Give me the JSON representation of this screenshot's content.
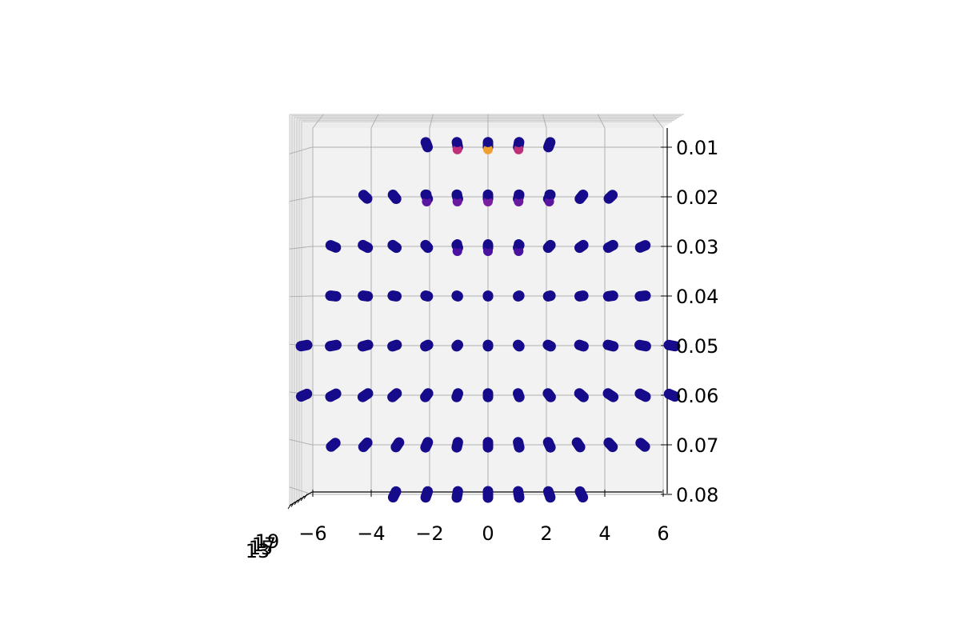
{
  "chart_data": {
    "type": "scatter",
    "projection": "3d",
    "view": "looking down the z axis",
    "title": "",
    "xlabel": "",
    "ylabel": "",
    "zlabel": "",
    "xlim": [
      -6.3,
      6.3
    ],
    "ylim": [
      0.0065,
      0.081
    ],
    "zlim": [
      11,
      19
    ],
    "y_inverted": true,
    "grid": true,
    "pane_color": "#f2f2f2",
    "colormap": "plasma",
    "xticks": [
      -6,
      -4,
      -2,
      0,
      2,
      4,
      6
    ],
    "xtick_labels": [
      "−6",
      "−4",
      "−2",
      "0",
      "2",
      "4",
      "6"
    ],
    "yticks": [
      0.01,
      0.02,
      0.03,
      0.04,
      0.05,
      0.06,
      0.07,
      0.08
    ],
    "ytick_labels": [
      "0.01",
      "0.02",
      "0.03",
      "0.04",
      "0.05",
      "0.06",
      "0.07",
      "0.08"
    ],
    "ztick_labels": [
      "13",
      "15",
      "17",
      "19"
    ],
    "grid_rows": [
      {
        "y": 0.08,
        "x": [
          -3.2,
          -2.1,
          -1.05,
          0,
          1.05,
          2.1,
          3.2
        ],
        "z_spread": 0.25
      },
      {
        "y": 0.07,
        "x": [
          -5.3,
          -4.2,
          -3.1,
          -2.1,
          -1.05,
          0,
          1.05,
          2.1,
          3.1,
          4.2,
          5.3
        ],
        "z_spread": 0.22
      },
      {
        "y": 0.06,
        "x": [
          -6.3,
          -5.3,
          -4.2,
          -3.2,
          -2.1,
          -1.05,
          0,
          1.05,
          2.1,
          3.2,
          4.2,
          5.3,
          6.3
        ],
        "z_spread": 0.25
      },
      {
        "y": 0.05,
        "x": [
          -6.3,
          -5.3,
          -4.2,
          -3.2,
          -2.1,
          -1.05,
          0,
          1.05,
          2.1,
          3.2,
          4.2,
          5.3,
          6.3
        ],
        "z_spread": 0.25
      },
      {
        "y": 0.04,
        "x": [
          -5.3,
          -4.2,
          -3.2,
          -2.1,
          -1.05,
          0,
          1.05,
          2.1,
          3.2,
          4.2,
          5.3
        ],
        "z_spread": 0.22
      },
      {
        "y": 0.03,
        "x": [
          -5.3,
          -4.2,
          -3.2,
          -2.1,
          -1.05,
          0,
          1.05,
          2.1,
          3.2,
          4.2,
          5.3
        ],
        "z_spread": 0.22
      },
      {
        "y": 0.02,
        "x": [
          -4.2,
          -3.2,
          -2.1,
          -1.05,
          0,
          1.05,
          2.1,
          3.2,
          4.2
        ],
        "z_spread": 0.2
      },
      {
        "y": 0.0095,
        "x": [
          -2.1,
          -1.05,
          0,
          1.05,
          2.1
        ],
        "z_spread": 0.2
      }
    ],
    "highlights": [
      {
        "x": 0,
        "y": 0.0095,
        "color": "#f0a030"
      },
      {
        "x": -1.05,
        "y": 0.0095,
        "color": "#c0307a"
      },
      {
        "x": 1.05,
        "y": 0.0095,
        "color": "#c0307a"
      },
      {
        "x": 0,
        "y": 0.02,
        "color": "#7a1fa0"
      },
      {
        "x": -1.05,
        "y": 0.02,
        "color": "#6a1aa0"
      },
      {
        "x": 1.05,
        "y": 0.02,
        "color": "#6a1aa0"
      },
      {
        "x": -2.1,
        "y": 0.02,
        "color": "#5a16a0"
      },
      {
        "x": 2.1,
        "y": 0.02,
        "color": "#5a16a0"
      },
      {
        "x": 0,
        "y": 0.03,
        "color": "#4a12a0"
      },
      {
        "x": -1.05,
        "y": 0.03,
        "color": "#4a12a0"
      },
      {
        "x": 1.05,
        "y": 0.03,
        "color": "#4a12a0"
      }
    ],
    "base_color": "#160b8a"
  }
}
